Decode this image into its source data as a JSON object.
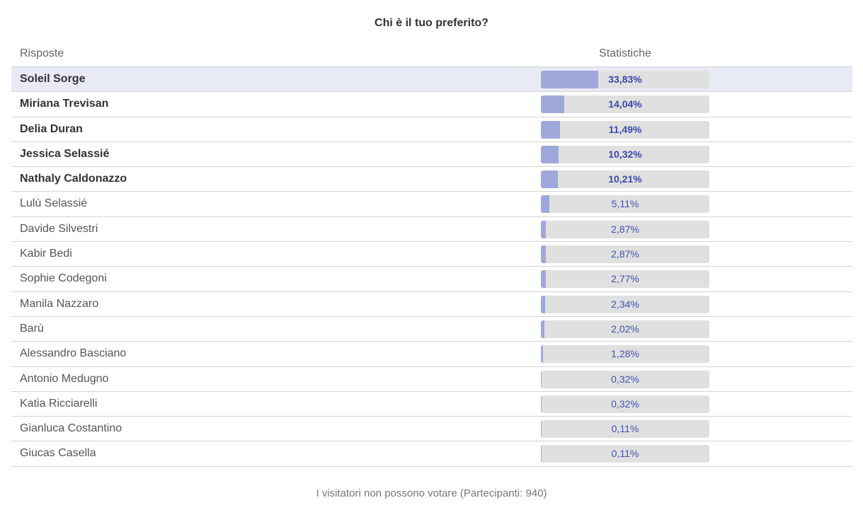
{
  "poll": {
    "title": "Chi è il tuo preferito?",
    "header": {
      "answers": "Risposte",
      "statistics": "Statistiche"
    },
    "rows": [
      {
        "name": "Soleil Sorge",
        "percent": "33,83%",
        "value": 33.83,
        "bold": true,
        "highlight": true
      },
      {
        "name": "Miriana Trevisan",
        "percent": "14,04%",
        "value": 14.04,
        "bold": true
      },
      {
        "name": "Delia Duran",
        "percent": "11,49%",
        "value": 11.49,
        "bold": true
      },
      {
        "name": "Jessica Selassié",
        "percent": "10,32%",
        "value": 10.32,
        "bold": true
      },
      {
        "name": "Nathaly Caldonazzo",
        "percent": "10,21%",
        "value": 10.21,
        "bold": true
      },
      {
        "name": "Lulù Selassié",
        "percent": "5,11%",
        "value": 5.11
      },
      {
        "name": "Davide Silvestri",
        "percent": "2,87%",
        "value": 2.87
      },
      {
        "name": "Kabir Bedi",
        "percent": "2,87%",
        "value": 2.87
      },
      {
        "name": "Sophie Codegoni",
        "percent": "2,77%",
        "value": 2.77
      },
      {
        "name": "Manila Nazzaro",
        "percent": "2,34%",
        "value": 2.34
      },
      {
        "name": "Barù",
        "percent": "2,02%",
        "value": 2.02
      },
      {
        "name": "Alessandro Basciano",
        "percent": "1,28%",
        "value": 1.28
      },
      {
        "name": "Antonio Medugno",
        "percent": "0,32%",
        "value": 0.32
      },
      {
        "name": "Katia Ricciarelli",
        "percent": "0,32%",
        "value": 0.32
      },
      {
        "name": "Gianluca Costantino",
        "percent": "0,11%",
        "value": 0.11
      },
      {
        "name": "Giucas Casella",
        "percent": "0,11%",
        "value": 0.11
      }
    ],
    "footer": "I visitatori non possono votare (Partecipanti: 940)"
  },
  "colors": {
    "bar_fill": "#9fa8da",
    "bar_track": "#e0e0e0",
    "highlight": "#e8eaf6",
    "label": "#3f51b5"
  }
}
